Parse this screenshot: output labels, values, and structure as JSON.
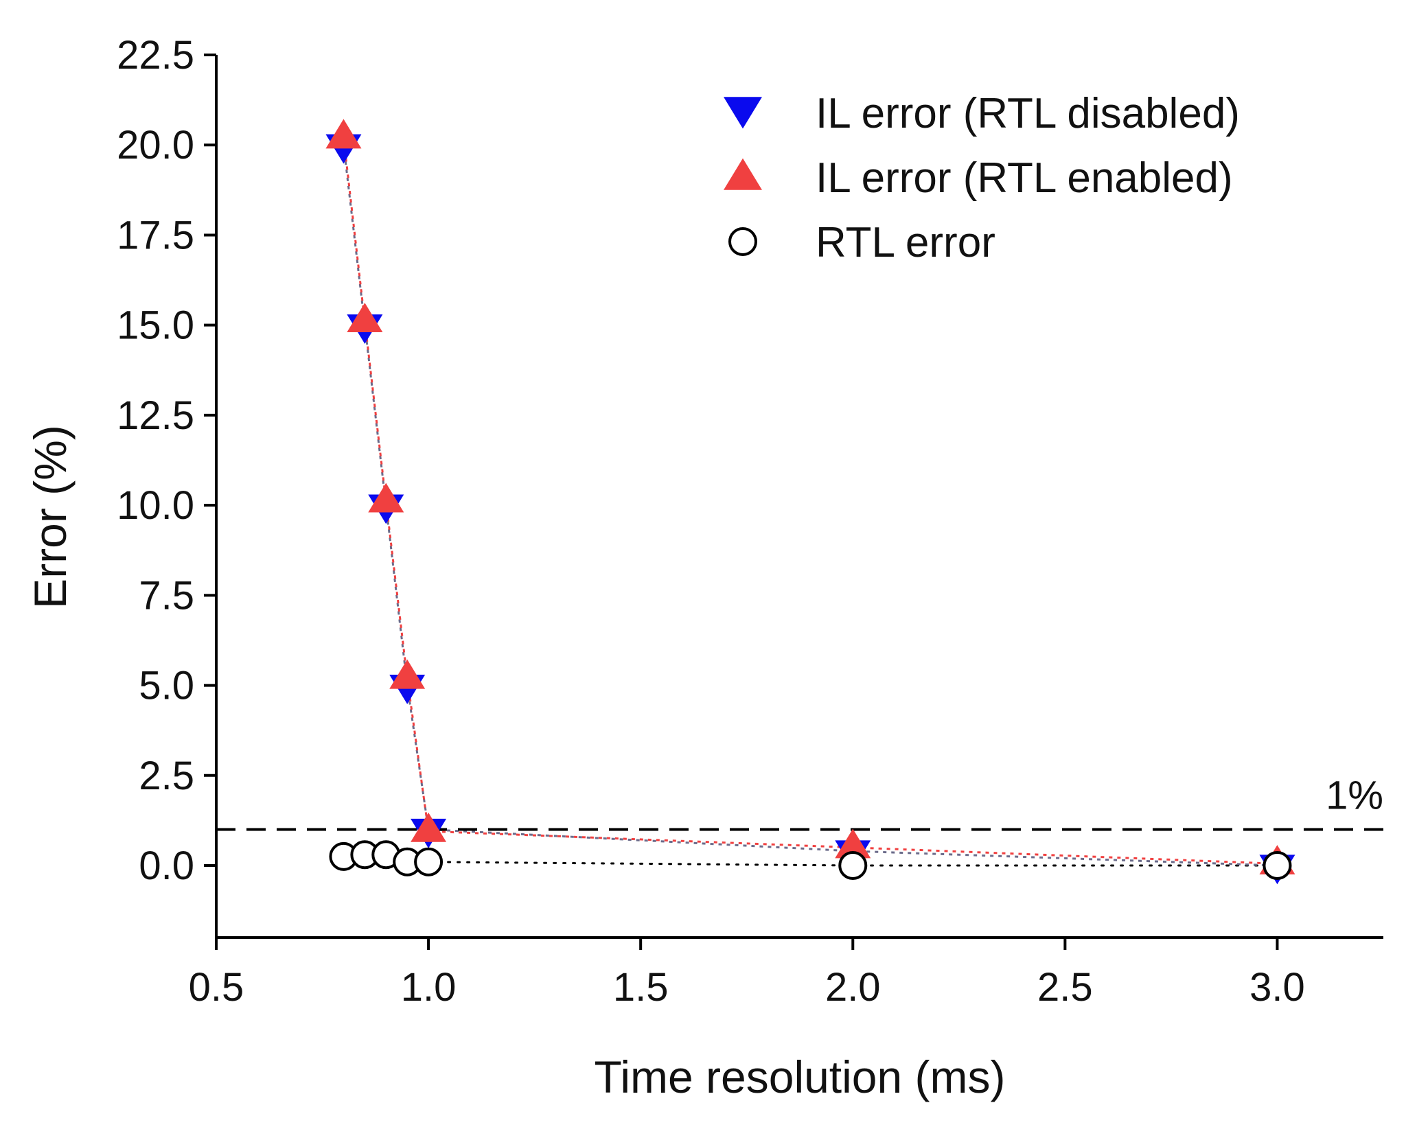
{
  "chart_data": {
    "type": "scatter",
    "title": "",
    "xlabel": "Time resolution (ms)",
    "ylabel": "Error (%)",
    "xlim": [
      0.5,
      3.25
    ],
    "ylim": [
      -2.0,
      22.5
    ],
    "xticks": [
      "0.5",
      "1.0",
      "1.5",
      "2.0",
      "2.5",
      "3.0"
    ],
    "xtick_values": [
      0.5,
      1.0,
      1.5,
      2.0,
      2.5,
      3.0
    ],
    "yticks": [
      "0.0",
      "2.5",
      "5.0",
      "7.5",
      "10.0",
      "12.5",
      "15.0",
      "17.5",
      "20.0",
      "22.5"
    ],
    "ytick_values": [
      0.0,
      2.5,
      5.0,
      7.5,
      10.0,
      12.5,
      15.0,
      17.5,
      20.0,
      22.5
    ],
    "series": [
      {
        "name": "IL error (RTL disabled)",
        "marker": "triangle-down",
        "color": "#0a0aee",
        "line": "dotted",
        "x": [
          0.8,
          0.85,
          0.9,
          0.95,
          1.0,
          2.0,
          3.0
        ],
        "y": [
          20.0,
          15.0,
          10.0,
          5.0,
          1.0,
          0.4,
          0.0
        ]
      },
      {
        "name": "IL error (RTL enabled)",
        "marker": "triangle-up",
        "color": "#f04040",
        "line": "dotted",
        "x": [
          0.8,
          0.85,
          0.9,
          0.95,
          1.0,
          2.0,
          3.0
        ],
        "y": [
          20.2,
          15.1,
          10.1,
          5.2,
          0.95,
          0.5,
          0.05
        ]
      },
      {
        "name": "RTL error",
        "marker": "circle-open",
        "color": "#000000",
        "line": "dotted",
        "x": [
          0.8,
          0.85,
          0.9,
          0.95,
          1.0,
          2.0,
          3.0
        ],
        "y": [
          0.25,
          0.3,
          0.3,
          0.1,
          0.1,
          0.0,
          0.0
        ]
      }
    ],
    "reference_line": {
      "y": 1.0,
      "label": "1%",
      "style": "dashed",
      "color": "#000000"
    },
    "legend_position": "top-right",
    "grid": false
  }
}
